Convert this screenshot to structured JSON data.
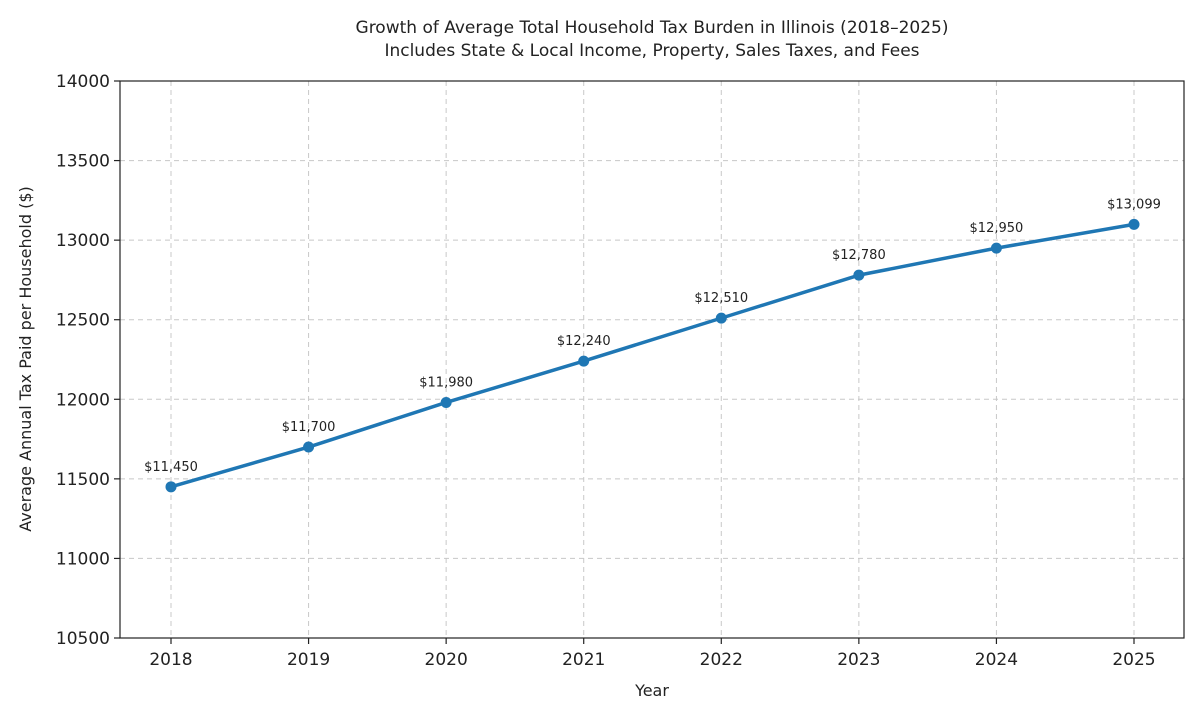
{
  "chart_data": {
    "type": "line",
    "title": "Growth of Average Total Household Tax Burden in Illinois (2018–2025)",
    "subtitle": "Includes State & Local Income, Property, Sales Taxes, and Fees",
    "xlabel": "Year",
    "ylabel": "Average Annual Tax Paid per Household ($)",
    "categories": [
      "2018",
      "2019",
      "2020",
      "2021",
      "2022",
      "2023",
      "2024",
      "2025"
    ],
    "series": [
      {
        "values": [
          11450,
          11700,
          11980,
          12240,
          12510,
          12780,
          12950,
          13099
        ],
        "labels": [
          "$11,450",
          "$11,700",
          "$11,980",
          "$12,240",
          "$12,510",
          "$12,780",
          "$12,950",
          "$13,099"
        ]
      }
    ],
    "ylim": [
      10500,
      14000
    ],
    "yticks": [
      "10500",
      "11000",
      "11500",
      "12000",
      "12500",
      "13000",
      "13500",
      "14000"
    ],
    "grid": true,
    "line_color": "#1f77b4"
  }
}
